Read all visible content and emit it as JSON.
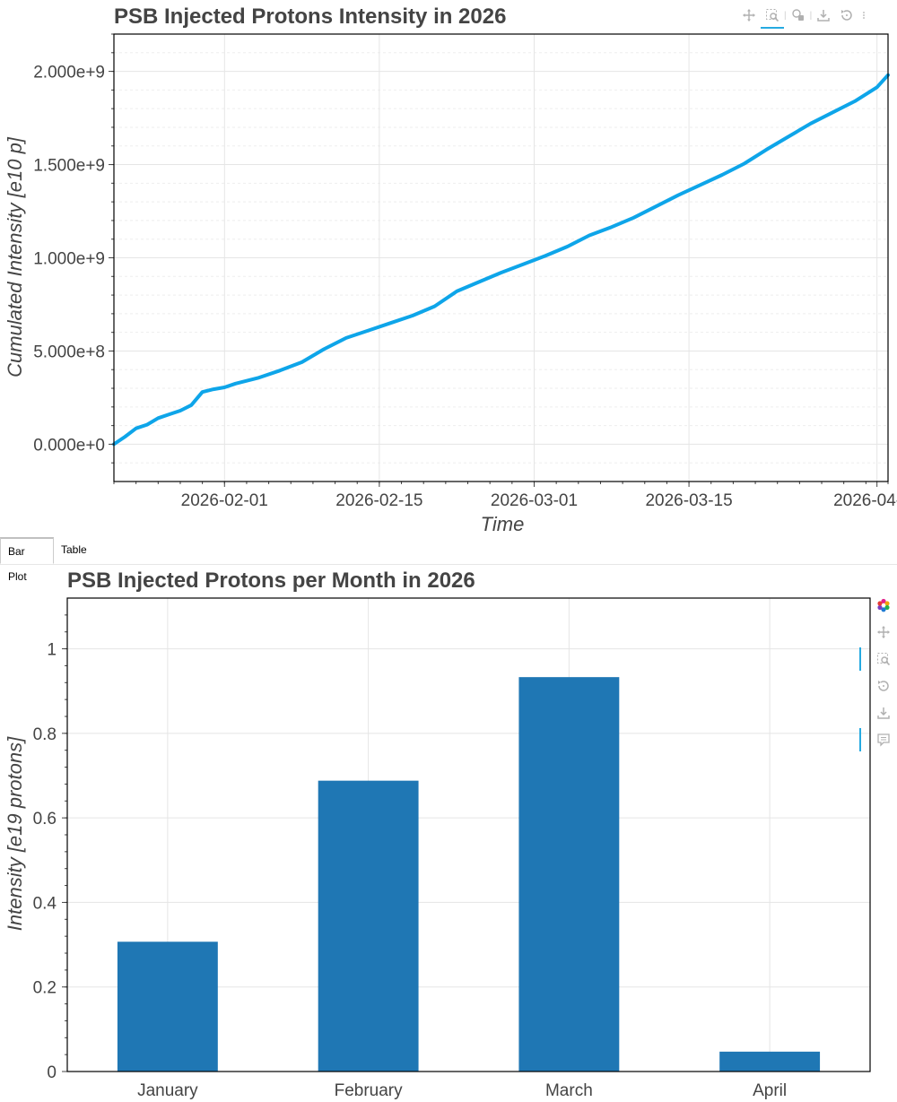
{
  "tabs": [
    {
      "label": "Bar Plot",
      "active": true
    },
    {
      "label": "Table",
      "active": false
    }
  ],
  "icons": {
    "top_toolbar": [
      "pan-icon",
      "box-zoom-icon",
      "hover-icon",
      "save-icon",
      "reset-icon",
      "more-icon"
    ],
    "bottom_toolbar": [
      "bokeh-logo-icon",
      "pan-icon",
      "box-zoom-icon",
      "reset-icon",
      "save-icon",
      "hover-icon"
    ]
  },
  "colors": {
    "line": "#0ea5e9",
    "bar": "#1f77b4",
    "title": "#444444",
    "grid": "#e5e5e5",
    "active_tool": "#26aae1"
  },
  "chart_data": [
    {
      "type": "line",
      "title": "PSB Injected Protons Intensity in 2026",
      "xlabel": "Time",
      "ylabel": "Cumulated Intensity [e10 p]",
      "x_ticks": [
        "2026-02-01",
        "2026-02-15",
        "2026-03-01",
        "2026-03-15",
        "2026-04-01"
      ],
      "y_ticks": [
        "0.000e+0",
        "5.000e+8",
        "1.000e+9",
        "1.500e+9",
        "2.000e+9"
      ],
      "xlim": [
        "2026-01-22",
        "2026-04-02"
      ],
      "ylim": [
        -200000000,
        2200000000
      ],
      "grid": true,
      "series": [
        {
          "x": [
            "2026-01-22",
            "2026-01-23",
            "2026-01-24",
            "2026-01-25",
            "2026-01-26",
            "2026-01-27",
            "2026-01-28",
            "2026-01-29",
            "2026-01-30",
            "2026-01-31",
            "2026-02-01",
            "2026-02-02",
            "2026-02-04",
            "2026-02-06",
            "2026-02-08",
            "2026-02-10",
            "2026-02-12",
            "2026-02-14",
            "2026-02-16",
            "2026-02-18",
            "2026-02-20",
            "2026-02-22",
            "2026-02-24",
            "2026-02-26",
            "2026-02-28",
            "2026-03-02",
            "2026-03-04",
            "2026-03-06",
            "2026-03-08",
            "2026-03-10",
            "2026-03-12",
            "2026-03-14",
            "2026-03-16",
            "2026-03-18",
            "2026-03-20",
            "2026-03-22",
            "2026-03-24",
            "2026-03-26",
            "2026-03-28",
            "2026-03-30",
            "2026-04-01",
            "2026-04-02"
          ],
          "y": [
            0,
            40000000,
            85000000,
            105000000,
            140000000,
            160000000,
            180000000,
            210000000,
            280000000,
            295000000,
            305000000,
            325000000,
            355000000,
            395000000,
            440000000,
            510000000,
            570000000,
            610000000,
            650000000,
            690000000,
            740000000,
            820000000,
            870000000,
            920000000,
            965000000,
            1010000000,
            1060000000,
            1120000000,
            1165000000,
            1215000000,
            1275000000,
            1335000000,
            1390000000,
            1445000000,
            1505000000,
            1580000000,
            1650000000,
            1720000000,
            1780000000,
            1840000000,
            1915000000,
            1980000000
          ]
        }
      ]
    },
    {
      "type": "bar",
      "title": "PSB Injected Protons per Month in 2026",
      "xlabel": "",
      "ylabel": "Intensity [e19 protons]",
      "categories": [
        "January",
        "February",
        "March",
        "April"
      ],
      "values": [
        0.307,
        0.688,
        0.933,
        0.047
      ],
      "y_ticks": [
        "0",
        "0.2",
        "0.4",
        "0.6",
        "0.8",
        "1"
      ],
      "ylim": [
        0,
        1.12
      ],
      "grid": true
    }
  ]
}
